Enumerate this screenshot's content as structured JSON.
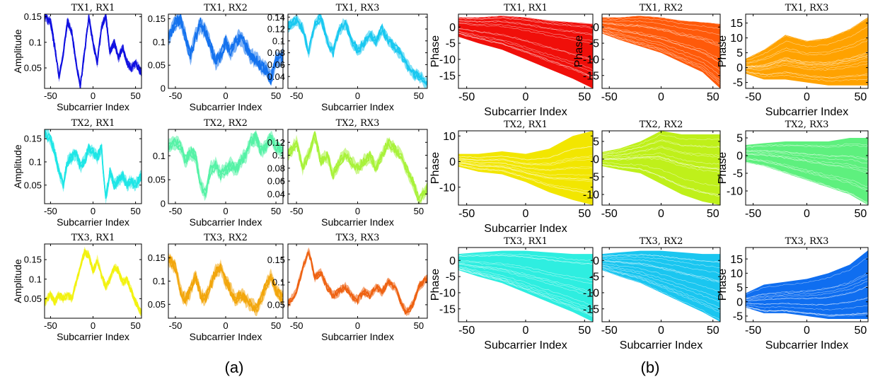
{
  "figure": {
    "caption_a": "(a)",
    "caption_b": "(b)"
  },
  "chart_data": [
    {
      "panel": "a",
      "type": "line",
      "title": "TX1, RX1",
      "xlabel": "Subcarrier Index",
      "ylabel": "Amplitude",
      "xlim": [
        -57,
        57
      ],
      "ylim": [
        0.01,
        0.155
      ],
      "xticks": [
        -50,
        0,
        50
      ],
      "yticks": [
        0.05,
        0.1,
        0.15
      ],
      "ytick_labels": [
        "0.05",
        "0.1",
        "0.15"
      ],
      "color": "#1010e0",
      "x": [
        -57,
        -50,
        -45,
        -40,
        -35,
        -30,
        -25,
        -20,
        -15,
        -10,
        -5,
        0,
        5,
        10,
        15,
        20,
        25,
        30,
        35,
        40,
        45,
        50,
        57
      ],
      "y": [
        0.15,
        0.14,
        0.09,
        0.03,
        0.08,
        0.14,
        0.12,
        0.06,
        0.015,
        0.08,
        0.15,
        0.1,
        0.06,
        0.13,
        0.15,
        0.08,
        0.1,
        0.07,
        0.09,
        0.06,
        0.05,
        0.06,
        0.04
      ],
      "spread": 0.008
    },
    {
      "panel": "a",
      "type": "line",
      "title": "TX1, RX2",
      "xlabel": "Subcarrier Index",
      "ylabel": "",
      "xlim": [
        -57,
        57
      ],
      "ylim": [
        0,
        0.16
      ],
      "xticks": [
        -50,
        0,
        50
      ],
      "yticks": [
        0,
        0.05,
        0.1,
        0.15
      ],
      "ytick_labels": [
        "0",
        "0.05",
        "0.1",
        "0.15"
      ],
      "color": "#1472ee",
      "x": [
        -57,
        -50,
        -45,
        -40,
        -35,
        -30,
        -25,
        -20,
        -15,
        -10,
        -5,
        0,
        5,
        10,
        15,
        20,
        25,
        30,
        35,
        40,
        45,
        50,
        57
      ],
      "y": [
        0.11,
        0.14,
        0.15,
        0.11,
        0.07,
        0.11,
        0.14,
        0.12,
        0.09,
        0.06,
        0.07,
        0.1,
        0.08,
        0.1,
        0.11,
        0.09,
        0.07,
        0.06,
        0.05,
        0.04,
        0.02,
        0.06,
        0.07
      ],
      "spread": 0.016
    },
    {
      "panel": "a",
      "type": "line",
      "title": "TX1, RX3",
      "xlabel": "Subcarrier Index",
      "ylabel": "",
      "xlim": [
        -57,
        57
      ],
      "ylim": [
        0.02,
        0.145
      ],
      "xticks": [
        -50,
        0,
        50
      ],
      "yticks": [
        0.04,
        0.06,
        0.08,
        0.1,
        0.12,
        0.14
      ],
      "ytick_labels": [
        "0.04",
        "0.06",
        "0.08",
        "0.1",
        "0.12",
        "0.14"
      ],
      "color": "#19c8f0",
      "x": [
        -57,
        -50,
        -45,
        -40,
        -35,
        -30,
        -25,
        -20,
        -15,
        -10,
        -5,
        0,
        5,
        10,
        15,
        20,
        25,
        30,
        35,
        40,
        45,
        50,
        57
      ],
      "y": [
        0.125,
        0.135,
        0.12,
        0.08,
        0.13,
        0.14,
        0.1,
        0.08,
        0.12,
        0.13,
        0.1,
        0.085,
        0.095,
        0.11,
        0.1,
        0.12,
        0.1,
        0.09,
        0.08,
        0.06,
        0.045,
        0.04,
        0.03
      ],
      "spread": 0.009
    },
    {
      "panel": "a",
      "type": "line",
      "title": "TX2, RX1",
      "xlabel": "Subcarrier Index",
      "ylabel": "Amplitude",
      "xlim": [
        -57,
        57
      ],
      "ylim": [
        0.01,
        0.17
      ],
      "xticks": [
        -50,
        0,
        50
      ],
      "yticks": [
        0.05,
        0.1,
        0.15
      ],
      "ytick_labels": [
        "0.05",
        "0.1",
        "0.15"
      ],
      "color": "#1ee6e6",
      "x": [
        -57,
        -50,
        -45,
        -40,
        -35,
        -30,
        -25,
        -20,
        -15,
        -10,
        -5,
        0,
        5,
        10,
        15,
        20,
        25,
        30,
        35,
        40,
        45,
        50,
        57
      ],
      "y": [
        0.16,
        0.15,
        0.12,
        0.08,
        0.05,
        0.1,
        0.11,
        0.12,
        0.09,
        0.1,
        0.13,
        0.12,
        0.11,
        0.13,
        0.02,
        0.08,
        0.05,
        0.06,
        0.07,
        0.05,
        0.06,
        0.05,
        0.07
      ],
      "spread": 0.012
    },
    {
      "panel": "a",
      "type": "line",
      "title": "TX2, RX2",
      "xlabel": "Subcarrier Index",
      "ylabel": "",
      "xlim": [
        -57,
        57
      ],
      "ylim": [
        0,
        0.155
      ],
      "xticks": [
        -50,
        0,
        50
      ],
      "yticks": [
        0,
        0.05,
        0.1
      ],
      "ytick_labels": [
        "0",
        "0.05",
        "0.1"
      ],
      "color": "#55f2a6",
      "x": [
        -57,
        -50,
        -45,
        -40,
        -35,
        -30,
        -25,
        -20,
        -15,
        -10,
        -5,
        0,
        5,
        10,
        15,
        20,
        25,
        30,
        35,
        40,
        45,
        50,
        57
      ],
      "y": [
        0.12,
        0.13,
        0.12,
        0.09,
        0.11,
        0.1,
        0.04,
        0.02,
        0.07,
        0.08,
        0.06,
        0.07,
        0.08,
        0.07,
        0.09,
        0.1,
        0.13,
        0.14,
        0.11,
        0.12,
        0.14,
        0.12,
        0.11
      ],
      "spread": 0.014
    },
    {
      "panel": "a",
      "type": "line",
      "title": "TX2, RX3",
      "xlabel": "Subcarrier Index",
      "ylabel": "",
      "xlim": [
        -57,
        57
      ],
      "ylim": [
        0.025,
        0.14
      ],
      "xticks": [
        -50,
        0,
        50
      ],
      "yticks": [
        0.04,
        0.06,
        0.08,
        0.1,
        0.12
      ],
      "ytick_labels": [
        "0.04",
        "0.06",
        "0.08",
        "0.1",
        "0.12"
      ],
      "color": "#a8f23a",
      "x": [
        -57,
        -50,
        -45,
        -40,
        -35,
        -30,
        -25,
        -20,
        -15,
        -10,
        -5,
        0,
        5,
        10,
        15,
        20,
        25,
        30,
        35,
        40,
        45,
        50,
        57
      ],
      "y": [
        0.1,
        0.12,
        0.08,
        0.1,
        0.13,
        0.09,
        0.1,
        0.07,
        0.09,
        0.1,
        0.09,
        0.08,
        0.09,
        0.1,
        0.08,
        0.1,
        0.12,
        0.11,
        0.1,
        0.08,
        0.06,
        0.03,
        0.05
      ],
      "spread": 0.009
    },
    {
      "panel": "a",
      "type": "line",
      "title": "TX3, RX1",
      "xlabel": "Subcarrier Index",
      "ylabel": "Amplitude",
      "xlim": [
        -57,
        57
      ],
      "ylim": [
        0.0,
        0.19
      ],
      "xticks": [
        -50,
        0,
        50
      ],
      "yticks": [
        0.05,
        0.1,
        0.15
      ],
      "ytick_labels": [
        "0.05",
        "0.1",
        "0.15"
      ],
      "color": "#f2f20f",
      "x": [
        -57,
        -50,
        -45,
        -40,
        -35,
        -30,
        -25,
        -20,
        -15,
        -10,
        -5,
        0,
        5,
        10,
        15,
        20,
        25,
        30,
        35,
        40,
        45,
        50,
        57
      ],
      "y": [
        0.04,
        0.06,
        0.04,
        0.06,
        0.05,
        0.06,
        0.05,
        0.09,
        0.13,
        0.17,
        0.16,
        0.12,
        0.15,
        0.11,
        0.08,
        0.1,
        0.13,
        0.12,
        0.09,
        0.1,
        0.07,
        0.04,
        0.015
      ],
      "spread": 0.01
    },
    {
      "panel": "a",
      "type": "line",
      "title": "TX3, RX2",
      "xlabel": "Subcarrier Index",
      "ylabel": "",
      "xlim": [
        -57,
        57
      ],
      "ylim": [
        0.02,
        0.18
      ],
      "xticks": [
        -50,
        0,
        50
      ],
      "yticks": [
        0.05,
        0.1,
        0.15
      ],
      "ytick_labels": [
        "0.05",
        "0.1",
        "0.15"
      ],
      "color": "#f2a60c",
      "x": [
        -57,
        -50,
        -45,
        -40,
        -35,
        -30,
        -25,
        -20,
        -15,
        -10,
        -5,
        0,
        5,
        10,
        15,
        20,
        25,
        30,
        35,
        40,
        45,
        50,
        57
      ],
      "y": [
        0.15,
        0.13,
        0.08,
        0.06,
        0.08,
        0.11,
        0.07,
        0.06,
        0.09,
        0.12,
        0.13,
        0.1,
        0.08,
        0.06,
        0.07,
        0.06,
        0.05,
        0.04,
        0.06,
        0.09,
        0.11,
        0.08,
        0.06
      ],
      "spread": 0.014
    },
    {
      "panel": "a",
      "type": "line",
      "title": "TX3, RX3",
      "xlabel": "Subcarrier Index",
      "ylabel": "",
      "xlim": [
        -57,
        57
      ],
      "ylim": [
        0.02,
        0.185
      ],
      "xticks": [
        -50,
        0,
        50
      ],
      "yticks": [
        0.05,
        0.1,
        0.15
      ],
      "ytick_labels": [
        "0.05",
        "0.1",
        "0.15"
      ],
      "color": "#ee6212",
      "x": [
        -57,
        -50,
        -45,
        -40,
        -35,
        -30,
        -25,
        -20,
        -15,
        -10,
        -5,
        0,
        5,
        10,
        15,
        20,
        25,
        30,
        35,
        40,
        45,
        50,
        57
      ],
      "y": [
        0.05,
        0.08,
        0.13,
        0.17,
        0.11,
        0.12,
        0.09,
        0.07,
        0.08,
        0.09,
        0.07,
        0.06,
        0.08,
        0.07,
        0.09,
        0.08,
        0.1,
        0.09,
        0.06,
        0.03,
        0.05,
        0.09,
        0.11
      ],
      "spread": 0.009
    },
    {
      "panel": "b",
      "type": "area",
      "title": "TX1, RX1",
      "xlabel": "Subcarrier Index",
      "ylabel": "Phase",
      "xlim": [
        -57,
        57
      ],
      "ylim": [
        -19,
        4
      ],
      "xticks": [
        -50,
        0,
        50
      ],
      "yticks": [
        0,
        -5,
        -10,
        -15
      ],
      "ytick_labels": [
        "0",
        "-5",
        "-10",
        "-15"
      ],
      "color": "#f00f0a",
      "x": [
        -57,
        -40,
        -20,
        0,
        20,
        40,
        57
      ],
      "upper": [
        3,
        3,
        3.5,
        3,
        2,
        1.5,
        1
      ],
      "lower": [
        -3,
        -5,
        -7,
        -10,
        -13,
        -16,
        -19
      ]
    },
    {
      "panel": "b",
      "type": "area",
      "title": "TX1, RX2",
      "xlabel": "",
      "ylabel": "Phase",
      "xlim": [
        -57,
        57
      ],
      "ylim": [
        -19,
        4
      ],
      "xticks": [
        -50,
        0,
        50
      ],
      "yticks": [
        0,
        -5,
        -10,
        -15
      ],
      "ytick_labels": [
        "0",
        "-5",
        "-10",
        "-15"
      ],
      "color": "#ff5a0a",
      "x": [
        -57,
        -40,
        -20,
        0,
        20,
        40,
        57
      ],
      "upper": [
        3,
        3,
        3.5,
        3,
        2,
        1.5,
        1
      ],
      "lower": [
        -2,
        -4,
        -6,
        -8,
        -11,
        -14,
        -19
      ]
    },
    {
      "panel": "b",
      "type": "area",
      "title": "TX1, RX3",
      "xlabel": "Subcarrier Index",
      "ylabel": "Phase",
      "xlim": [
        -57,
        57
      ],
      "ylim": [
        -7,
        18
      ],
      "xticks": [
        -50,
        0,
        50
      ],
      "yticks": [
        15,
        10,
        5,
        0,
        -5
      ],
      "ytick_labels": [
        "15",
        "10",
        "5",
        "0",
        "-5"
      ],
      "color": "#ffa200",
      "x": [
        -57,
        -40,
        -20,
        0,
        20,
        40,
        57
      ],
      "upper": [
        3,
        6,
        11,
        9,
        10,
        13,
        17
      ],
      "lower": [
        -2,
        -4,
        -4,
        -5,
        -6,
        -6,
        -6
      ]
    },
    {
      "panel": "b",
      "type": "area",
      "title": "TX2, RX1",
      "xlabel": "Subcarrier Index",
      "ylabel": "Phase",
      "xlim": [
        -57,
        57
      ],
      "ylim": [
        -17,
        12
      ],
      "xticks": [
        -50,
        0,
        50
      ],
      "yticks": [
        10,
        0,
        -10
      ],
      "ytick_labels": [
        "10",
        "0",
        "-10"
      ],
      "color": "#f2e600",
      "x": [
        -57,
        -40,
        -20,
        0,
        20,
        40,
        57
      ],
      "upper": [
        3,
        3,
        4,
        3,
        5,
        10,
        12
      ],
      "lower": [
        -2,
        -4,
        -5,
        -8,
        -12,
        -15,
        -17
      ]
    },
    {
      "panel": "b",
      "type": "area",
      "title": "TX2, RX2",
      "xlabel": "",
      "ylabel": "",
      "xlim": [
        -57,
        57
      ],
      "ylim": [
        -13,
        8
      ],
      "xticks": [
        -50,
        0,
        50
      ],
      "yticks": [
        5,
        0,
        -5,
        -10
      ],
      "ytick_labels": [
        "5",
        "0",
        "-5",
        "-10"
      ],
      "color": "#bff01a",
      "x": [
        -57,
        -40,
        -20,
        0,
        20,
        40,
        57
      ],
      "upper": [
        2,
        3,
        5,
        8,
        7,
        7,
        7
      ],
      "lower": [
        -2,
        -3,
        -4,
        -7,
        -10,
        -12,
        -13
      ]
    },
    {
      "panel": "b",
      "type": "area",
      "title": "TX2, RX3",
      "xlabel": "",
      "ylabel": "Phase",
      "xlim": [
        -57,
        57
      ],
      "ylim": [
        -14,
        7
      ],
      "xticks": [
        -50,
        0,
        50
      ],
      "yticks": [
        5,
        0,
        -5,
        -10
      ],
      "ytick_labels": [
        "5",
        "0",
        "-5",
        "-10"
      ],
      "color": "#5ef07e",
      "x": [
        -57,
        -40,
        -20,
        0,
        20,
        40,
        57
      ],
      "upper": [
        3,
        3.5,
        4,
        4,
        4,
        5,
        5
      ],
      "lower": [
        -2,
        -3,
        -5,
        -7,
        -9,
        -11,
        -14
      ]
    },
    {
      "panel": "b",
      "type": "area",
      "title": "TX3, RX1",
      "xlabel": "Subcarrier Index",
      "ylabel": "Phase",
      "xlim": [
        -57,
        57
      ],
      "ylim": [
        -19,
        4
      ],
      "xticks": [
        -50,
        0,
        50
      ],
      "yticks": [
        0,
        -5,
        -10,
        -15
      ],
      "ytick_labels": [
        "0",
        "-5",
        "-10",
        "-15"
      ],
      "color": "#2eeee0",
      "x": [
        -57,
        -40,
        -20,
        0,
        20,
        40,
        57
      ],
      "upper": [
        2,
        2.5,
        3,
        3,
        2.5,
        2,
        2
      ],
      "lower": [
        -3,
        -5,
        -7,
        -10,
        -13,
        -16,
        -19
      ]
    },
    {
      "panel": "b",
      "type": "area",
      "title": "TX3, RX2",
      "xlabel": "Subcarrier Index",
      "ylabel": "",
      "xlim": [
        -57,
        57
      ],
      "ylim": [
        -19,
        4
      ],
      "xticks": [
        -50,
        0,
        50
      ],
      "yticks": [
        0,
        -5,
        -10,
        -15
      ],
      "ytick_labels": [
        "0",
        "-5",
        "-10",
        "-15"
      ],
      "color": "#1ac6f0",
      "x": [
        -57,
        -40,
        -20,
        0,
        20,
        40,
        57
      ],
      "upper": [
        2,
        2.5,
        3,
        3,
        2.5,
        2,
        2
      ],
      "lower": [
        -3,
        -5,
        -7,
        -10,
        -13,
        -16,
        -19
      ]
    },
    {
      "panel": "b",
      "type": "area",
      "title": "TX3, RX3",
      "xlabel": "Subcarrier Index",
      "ylabel": "Phase",
      "xlim": [
        -57,
        57
      ],
      "ylim": [
        -7,
        19
      ],
      "xticks": [
        -50,
        0,
        50
      ],
      "yticks": [
        15,
        10,
        5,
        0,
        -5
      ],
      "ytick_labels": [
        "15",
        "10",
        "5",
        "0",
        "-5"
      ],
      "color": "#0f6ef0",
      "x": [
        -57,
        -40,
        -20,
        0,
        20,
        40,
        57
      ],
      "upper": [
        3,
        6,
        7,
        8,
        10,
        13,
        18
      ],
      "lower": [
        -2,
        -4,
        -4,
        -5,
        -6,
        -6,
        -6
      ]
    }
  ]
}
